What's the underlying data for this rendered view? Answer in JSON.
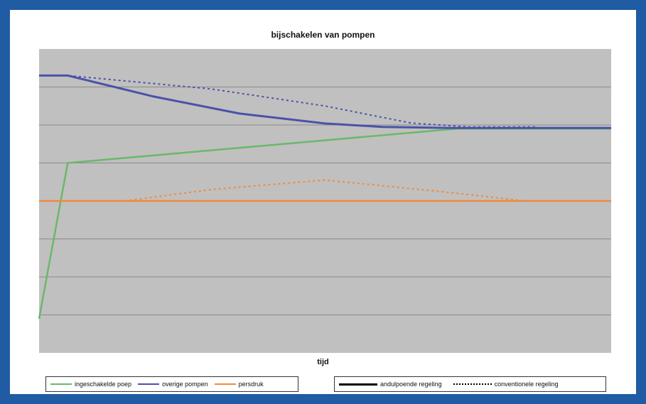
{
  "chart_data": {
    "type": "line",
    "title": "bijschakelen van pompen",
    "xlabel": "tijd",
    "ylabel": "",
    "xlim": [
      0,
      100
    ],
    "ylim": [
      0,
      8
    ],
    "grid": true,
    "series": [
      {
        "name": "ingeschakelde poep",
        "color": "#6ab86a",
        "style": "solid",
        "points": [
          [
            0,
            0.9
          ],
          [
            5,
            5.0
          ],
          [
            73,
            5.9
          ],
          [
            100,
            5.9
          ]
        ]
      },
      {
        "name": "overige pompen",
        "color": "#4a52a8",
        "style": "solid",
        "points": [
          [
            0,
            7.3
          ],
          [
            5,
            7.3
          ],
          [
            20,
            6.75
          ],
          [
            35,
            6.3
          ],
          [
            50,
            6.04
          ],
          [
            60,
            5.95
          ],
          [
            72,
            5.92
          ],
          [
            100,
            5.92
          ]
        ]
      },
      {
        "name": "overige pompen",
        "color": "#4a52a8",
        "style": "dotted",
        "points": [
          [
            0,
            7.3
          ],
          [
            5,
            7.3
          ],
          [
            30,
            6.95
          ],
          [
            50,
            6.5
          ],
          [
            65,
            6.05
          ],
          [
            75,
            5.95
          ],
          [
            87,
            5.95
          ]
        ]
      },
      {
        "name": "persdruk",
        "color": "#f08a3a",
        "style": "solid",
        "points": [
          [
            0,
            4.0
          ],
          [
            100,
            4.0
          ]
        ]
      },
      {
        "name": "persdruk",
        "color": "#f08a3a",
        "style": "dotted",
        "points": [
          [
            15,
            4.0
          ],
          [
            30,
            4.3
          ],
          [
            50,
            4.55
          ],
          [
            70,
            4.25
          ],
          [
            85,
            4.0
          ]
        ]
      }
    ],
    "legend_left": [
      {
        "label": "ingeschakelde poep",
        "color": "#6ab86a",
        "style": "solid"
      },
      {
        "label": "overige pompen",
        "color": "#4a52a8",
        "style": "solid"
      },
      {
        "label": "persdruk",
        "color": "#f08a3a",
        "style": "solid"
      }
    ],
    "legend_right": [
      {
        "label": "andulpoende regeling",
        "color": "#000000",
        "style": "solid"
      },
      {
        "label": "conventionele regeling",
        "color": "#000000",
        "style": "dotted"
      }
    ],
    "colors": {
      "plot_background": "#c0c0c0",
      "grid": "#8a8a8a",
      "frame": "#1f5ca3"
    }
  }
}
